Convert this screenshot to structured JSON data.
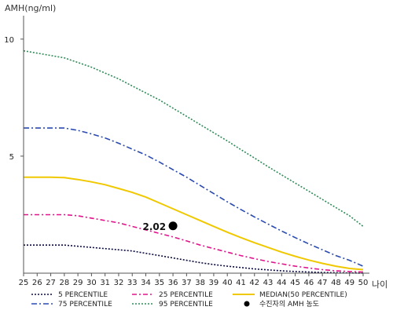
{
  "chart_data": {
    "type": "line",
    "ylabel": "AMH(ng/ml)",
    "xlabel": "나이",
    "x": [
      25,
      26,
      27,
      28,
      29,
      30,
      31,
      32,
      33,
      34,
      35,
      36,
      37,
      38,
      39,
      40,
      41,
      42,
      43,
      44,
      45,
      46,
      47,
      48,
      49,
      50
    ],
    "y_ticks": [
      5,
      10
    ],
    "ylim": [
      0,
      11
    ],
    "xlim": [
      25,
      50
    ],
    "series": [
      {
        "name": "5 PERCENTILE",
        "color": "#0a0a40",
        "dash": "2,2",
        "values": [
          1.2,
          1.2,
          1.2,
          1.2,
          1.15,
          1.1,
          1.05,
          1.0,
          0.95,
          0.85,
          0.75,
          0.65,
          0.55,
          0.45,
          0.37,
          0.3,
          0.24,
          0.18,
          0.14,
          0.1,
          0.07,
          0.05,
          0.03,
          0.02,
          0.01,
          0.0
        ]
      },
      {
        "name": "25 PERCENTILE",
        "color": "#e0158c",
        "dash": "6,3,2,3",
        "values": [
          2.5,
          2.5,
          2.5,
          2.5,
          2.45,
          2.35,
          2.25,
          2.15,
          2.0,
          1.85,
          1.7,
          1.55,
          1.38,
          1.2,
          1.05,
          0.9,
          0.75,
          0.62,
          0.5,
          0.4,
          0.3,
          0.22,
          0.15,
          0.1,
          0.07,
          0.05
        ]
      },
      {
        "name": "MEDIAN(50 PERCENTILE)",
        "color": "#f0c800",
        "dash": "",
        "values": [
          4.1,
          4.1,
          4.1,
          4.08,
          4.0,
          3.9,
          3.78,
          3.62,
          3.45,
          3.25,
          3.0,
          2.75,
          2.5,
          2.25,
          2.0,
          1.75,
          1.52,
          1.3,
          1.1,
          0.9,
          0.72,
          0.56,
          0.42,
          0.3,
          0.2,
          0.15
        ]
      },
      {
        "name": "75 PERCENTILE",
        "color": "#2a4ab0",
        "dash": "7,3,2,3",
        "values": [
          6.2,
          6.2,
          6.2,
          6.2,
          6.1,
          5.95,
          5.78,
          5.55,
          5.3,
          5.05,
          4.75,
          4.42,
          4.1,
          3.75,
          3.4,
          3.05,
          2.72,
          2.4,
          2.1,
          1.8,
          1.52,
          1.25,
          1.0,
          0.75,
          0.55,
          0.3
        ]
      },
      {
        "name": "95 PERCENTILE",
        "color": "#2e8b57",
        "dash": "2,2",
        "values": [
          9.5,
          9.4,
          9.3,
          9.2,
          9.0,
          8.8,
          8.55,
          8.3,
          8.0,
          7.7,
          7.4,
          7.05,
          6.7,
          6.35,
          6.0,
          5.65,
          5.28,
          4.92,
          4.55,
          4.2,
          3.85,
          3.5,
          3.15,
          2.8,
          2.45,
          2.0
        ]
      }
    ],
    "marker": {
      "name": "수진자의 AMH 농도",
      "x": 36,
      "y": 2.02,
      "label": "2.02",
      "color": "#000000"
    },
    "grid": false,
    "legend_position": "bottom"
  }
}
